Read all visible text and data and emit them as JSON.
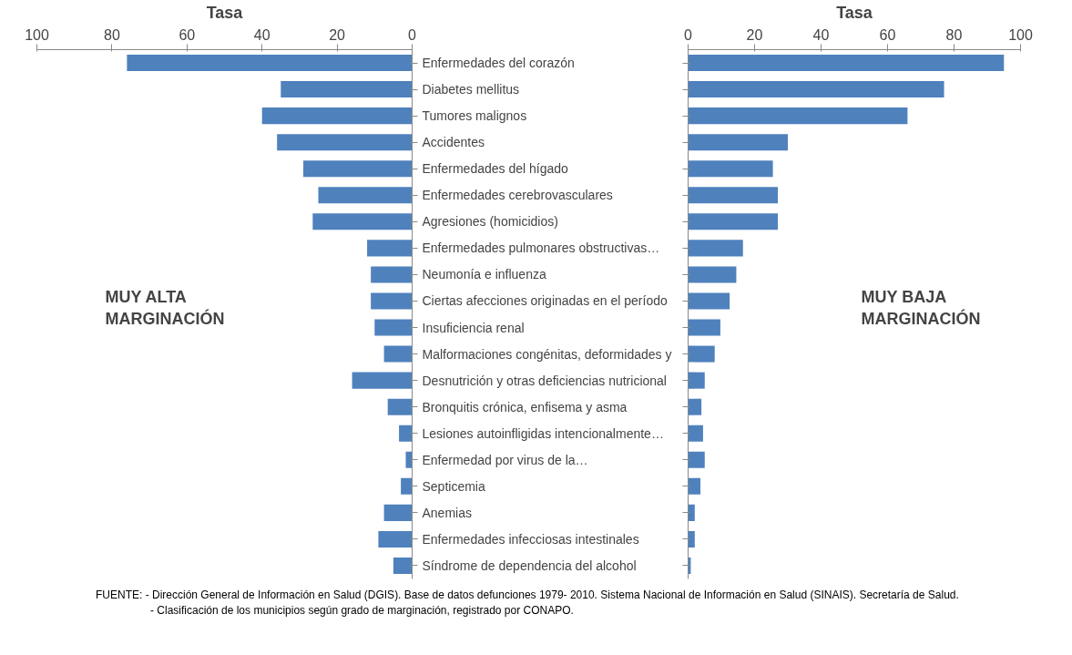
{
  "chart_data": [
    {
      "type": "bar",
      "orientation": "horizontal",
      "xlabel": "Tasa",
      "categories": [
        "Enfermedades del corazón",
        "Diabetes mellitus",
        "Tumores malignos",
        "Accidentes",
        "Enfermedades del hígado",
        "Enfermedades cerebrovasculares",
        "Agresiones (homicidios)",
        "Enfermedades pulmonares obstructivas…",
        "Neumonía e influenza",
        "Ciertas afecciones originadas en el período",
        "Insuficiencia renal",
        "Malformaciones congénitas, deformidades y",
        "Desnutrición y otras deficiencias nutricional",
        "Bronquitis crónica, enfisema y asma",
        "Lesiones autoinfligidas intencionalmente…",
        "Enfermedad por virus de la…",
        "Septicemia",
        "Anemias",
        "Enfermedades infecciosas intestinales",
        "Síndrome de dependencia del alcohol"
      ],
      "values": [
        76,
        35,
        40,
        36,
        29,
        25,
        26.5,
        12,
        11,
        11,
        10,
        7.5,
        16,
        6.5,
        3.5,
        1.7,
        3,
        7.5,
        9,
        5
      ],
      "color": "#4f81bd",
      "xlim": [
        100,
        0
      ],
      "xticks": [
        100,
        80,
        60,
        40,
        20,
        0
      ],
      "grid": false,
      "annotations": [
        "MUY ALTA\nMARGINACIÓN",
        "FUENTE: - Dirección General de Información en Salud (DGIS). Base de datos defunciones 1979- 2010. Sistema Nacional de Información en Salud (SINAIS). Secretaría de Salud.",
        "- Clasificación de los municipios según grado de marginación, registrado por CONAPO."
      ]
    },
    {
      "type": "bar",
      "orientation": "horizontal",
      "xlabel": "Tasa",
      "categories": [
        null,
        null,
        null,
        null,
        null,
        null,
        null,
        null,
        null,
        null,
        null,
        null,
        null,
        null,
        null,
        null,
        null,
        null,
        null,
        null
      ],
      "values": [
        95,
        77,
        66,
        30,
        25.5,
        27,
        27,
        16.5,
        14.5,
        12.5,
        9.7,
        8,
        5,
        4,
        4.5,
        5,
        3.7,
        2,
        2,
        0.8
      ],
      "color": "#4f81bd",
      "xlim": [
        0,
        100
      ],
      "xticks": [
        0,
        20,
        40,
        60,
        80,
        100
      ],
      "grid": false,
      "annotations": [
        "MUY BAJA\nMARGINACIÓN"
      ]
    }
  ]
}
